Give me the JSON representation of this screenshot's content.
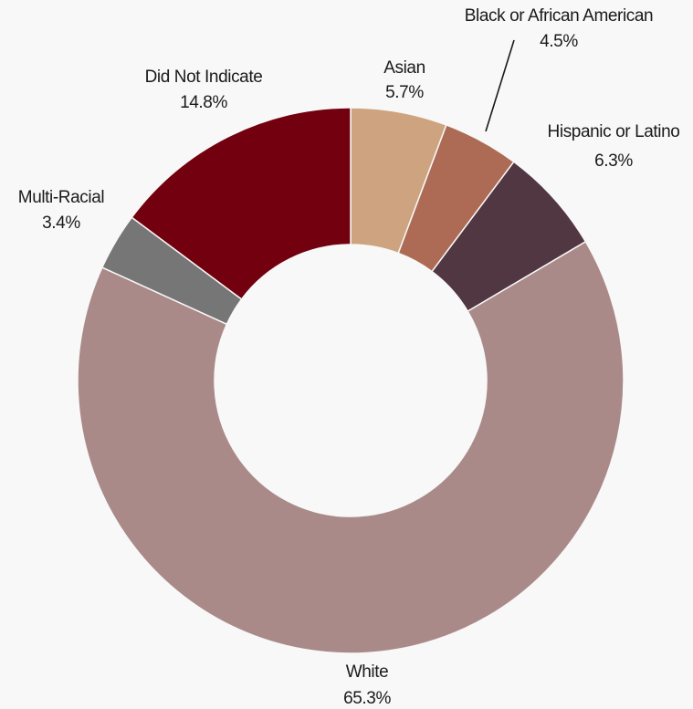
{
  "chart_data": {
    "type": "pie",
    "donut": true,
    "title": "",
    "legend": "none",
    "start_category": "Asian",
    "direction": "clockwise",
    "slices": [
      {
        "label": "Asian",
        "value": 5.7,
        "value_label": "5.7%",
        "color": "#cda47f"
      },
      {
        "label": "Black or African American",
        "value": 4.5,
        "value_label": "4.5%",
        "color": "#ad6b55"
      },
      {
        "label": "Hispanic or Latino",
        "value": 6.3,
        "value_label": "6.3%",
        "color": "#513742"
      },
      {
        "label": "White",
        "value": 65.3,
        "value_label": "65.3%",
        "color": "#aa8a89"
      },
      {
        "label": "Multi-Racial",
        "value": 3.4,
        "value_label": "3.4%",
        "color": "#767676"
      },
      {
        "label": "Did Not Indicate",
        "value": 14.8,
        "value_label": "14.8%",
        "color": "#73000f"
      }
    ]
  }
}
